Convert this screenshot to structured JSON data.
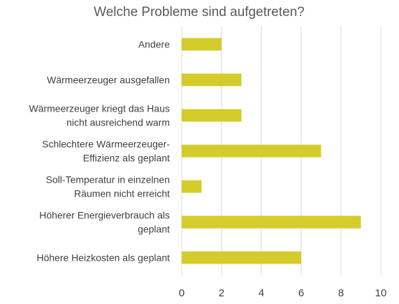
{
  "chart_data": {
    "type": "bar",
    "orientation": "horizontal",
    "title": "Welche Probleme sind aufgetreten?",
    "categories": [
      [
        "Andere"
      ],
      [
        "Wärmeerzeuger ausgefallen"
      ],
      [
        "Wärmeerzeuger kriegt das Haus",
        "nicht ausreichend warm"
      ],
      [
        "Schlechtere Wärmeerzeuger-",
        "Effizienz als geplant"
      ],
      [
        "Soll-Temperatur in einzelnen",
        "Räumen nicht erreicht"
      ],
      [
        "Höherer Energieverbrauch als",
        "geplant"
      ],
      [
        "Höhere Heizkosten als geplant"
      ]
    ],
    "values": [
      2,
      3,
      3,
      7,
      1,
      9,
      6
    ],
    "xlim": [
      0,
      10
    ],
    "xticks": [
      "0",
      "2",
      "4",
      "6",
      "8",
      "10"
    ],
    "grid": true,
    "colors": {
      "bar": "#d3cc2a",
      "grid": "#d9d9d9",
      "text": "#404040",
      "title": "#595959"
    }
  }
}
